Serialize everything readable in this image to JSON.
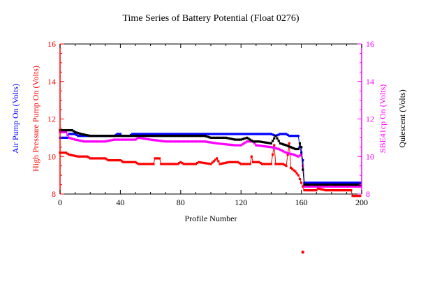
{
  "chart_data": {
    "type": "line",
    "title": "Time Series of Battery Potential (Float 0276)",
    "xlabel": "Profile Number",
    "xlim": [
      0,
      200
    ],
    "x_ticks": [
      "0",
      "40",
      "80",
      "120",
      "160",
      "200"
    ],
    "ylim": [
      8,
      16
    ],
    "y_ticks": [
      "8",
      "10",
      "12",
      "14",
      "16"
    ],
    "grid": false,
    "left_axis_labels": [
      {
        "text": "Air Pump On (Volts)",
        "color": "#0000ff"
      },
      {
        "text": "High Pressure Pump On (Volts)",
        "color": "#ff0000"
      }
    ],
    "right_axis_labels": [
      {
        "text": "SBE41cp On (Volts)",
        "color": "#ff00ff"
      },
      {
        "text": "Quiescent (Volts)",
        "color": "#000000"
      }
    ],
    "left_axis_color": "#ff0000",
    "right_axis_color": "#ff00ff",
    "series": [
      {
        "name": "Air Pump On (Volts)",
        "color": "#0000ff",
        "points": [
          [
            0,
            11.0
          ],
          [
            5,
            11.0
          ],
          [
            6,
            11.2
          ],
          [
            10,
            11.2
          ],
          [
            12,
            11.1
          ],
          [
            36,
            11.1
          ],
          [
            38,
            11.2
          ],
          [
            40,
            11.2
          ],
          [
            41,
            11.1
          ],
          [
            46,
            11.1
          ],
          [
            48,
            11.2
          ],
          [
            140,
            11.2
          ],
          [
            143,
            11.1
          ],
          [
            146,
            11.2
          ],
          [
            150,
            11.2
          ],
          [
            152,
            11.1
          ],
          [
            158,
            11.1
          ],
          [
            159,
            10.5
          ],
          [
            160,
            10.2
          ],
          [
            161,
            9.8
          ],
          [
            162,
            8.6
          ],
          [
            199,
            8.6
          ]
        ]
      },
      {
        "name": "High Pressure Pump On (Volts)",
        "color": "#ff0000",
        "points": [
          [
            0,
            10.2
          ],
          [
            4,
            10.2
          ],
          [
            6,
            10.1
          ],
          [
            12,
            10.0
          ],
          [
            18,
            10.0
          ],
          [
            20,
            9.9
          ],
          [
            30,
            9.9
          ],
          [
            32,
            9.8
          ],
          [
            40,
            9.8
          ],
          [
            42,
            9.7
          ],
          [
            50,
            9.7
          ],
          [
            52,
            9.6
          ],
          [
            62,
            9.6
          ],
          [
            63,
            9.9
          ],
          [
            66,
            9.9
          ],
          [
            67,
            9.6
          ],
          [
            78,
            9.6
          ],
          [
            80,
            9.7
          ],
          [
            82,
            9.6
          ],
          [
            90,
            9.6
          ],
          [
            92,
            9.7
          ],
          [
            100,
            9.6
          ],
          [
            104,
            9.9
          ],
          [
            106,
            9.6
          ],
          [
            112,
            9.7
          ],
          [
            118,
            9.7
          ],
          [
            120,
            9.6
          ],
          [
            126,
            9.6
          ],
          [
            127,
            10.0
          ],
          [
            128,
            9.7
          ],
          [
            132,
            9.7
          ],
          [
            134,
            9.6
          ],
          [
            140,
            9.6
          ],
          [
            142,
            10.6
          ],
          [
            143,
            9.6
          ],
          [
            148,
            9.6
          ],
          [
            150,
            9.5
          ],
          [
            152,
            10.7
          ],
          [
            153,
            9.4
          ],
          [
            156,
            9.2
          ],
          [
            158,
            9.0
          ],
          [
            160,
            8.6
          ],
          [
            161,
            8.4
          ],
          [
            162,
            8.2
          ],
          [
            170,
            8.2
          ],
          [
            171,
            8.3
          ],
          [
            176,
            8.2
          ],
          [
            193,
            8.2
          ],
          [
            194,
            7.9
          ],
          [
            199,
            7.9
          ]
        ]
      },
      {
        "name": "SBE41cp On (Volts)",
        "color": "#ff00ff",
        "points": [
          [
            0,
            11.3
          ],
          [
            4,
            11.3
          ],
          [
            6,
            11.0
          ],
          [
            10,
            10.9
          ],
          [
            16,
            10.8
          ],
          [
            30,
            10.8
          ],
          [
            36,
            10.9
          ],
          [
            50,
            10.9
          ],
          [
            52,
            11.0
          ],
          [
            60,
            10.9
          ],
          [
            70,
            10.8
          ],
          [
            96,
            10.8
          ],
          [
            104,
            10.7
          ],
          [
            116,
            10.6
          ],
          [
            120,
            10.6
          ],
          [
            124,
            10.8
          ],
          [
            128,
            10.8
          ],
          [
            130,
            10.6
          ],
          [
            140,
            10.5
          ],
          [
            145,
            10.4
          ],
          [
            150,
            10.2
          ],
          [
            155,
            10.1
          ],
          [
            158,
            10.0
          ],
          [
            160,
            10.1
          ],
          [
            161,
            9.5
          ],
          [
            162,
            8.4
          ],
          [
            199,
            8.4
          ]
        ]
      },
      {
        "name": "Quiescent (Volts)",
        "color": "#000000",
        "points": [
          [
            0,
            11.4
          ],
          [
            8,
            11.4
          ],
          [
            10,
            11.3
          ],
          [
            14,
            11.2
          ],
          [
            20,
            11.1
          ],
          [
            60,
            11.1
          ],
          [
            70,
            11.1
          ],
          [
            96,
            11.1
          ],
          [
            100,
            11.0
          ],
          [
            110,
            11.0
          ],
          [
            116,
            10.9
          ],
          [
            120,
            10.9
          ],
          [
            124,
            11.0
          ],
          [
            128,
            10.8
          ],
          [
            132,
            10.8
          ],
          [
            140,
            10.7
          ],
          [
            143,
            11.1
          ],
          [
            146,
            10.7
          ],
          [
            150,
            10.6
          ],
          [
            153,
            10.5
          ],
          [
            156,
            10.4
          ],
          [
            158,
            10.4
          ],
          [
            159,
            10.7
          ],
          [
            160,
            10.5
          ],
          [
            161,
            9.3
          ],
          [
            162,
            8.5
          ],
          [
            199,
            8.5
          ]
        ]
      }
    ],
    "outlier_points": [
      {
        "x": 161,
        "y": 4.9,
        "color": "#ff0000"
      }
    ]
  }
}
